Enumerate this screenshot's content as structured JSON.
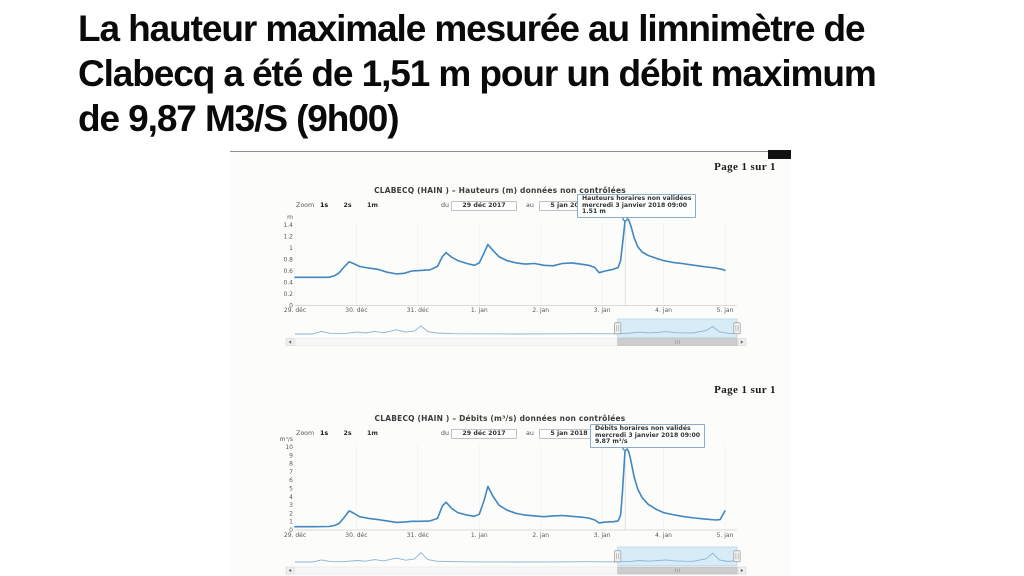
{
  "slide": {
    "title_lines": [
      "La hauteur maximale mesurée au limnimètre de",
      "Clabecq a été de 1,51 m pour un débit maximum",
      "de 9,87 M3/S (9h00)"
    ]
  },
  "colors": {
    "series_line": "#4187c0",
    "navigator_line": "#8ab4d6",
    "nav_selection_fill": "#d8ecf8",
    "nav_selection_border": "#aacde6",
    "tooltip_border": "#8aabca",
    "axis_text": "#5a5a5a",
    "scan_background": "#fcfcfa"
  },
  "chart_data": [
    {
      "type": "line",
      "page_label": "Page 1 sur 1",
      "title": "CLABECQ (HAIN ) – Hauteurs (m) données non contrôlées",
      "zoom_label": "Zoom",
      "zoom_options": [
        "1s",
        "2s",
        "1m"
      ],
      "active_zoom": "1s",
      "date_from_label": "du",
      "date_from": "29 déc 2017",
      "date_to_label": "au",
      "date_to": "5 jan 2018",
      "y_unit": "m",
      "y_ticks": [
        "0",
        "0.2",
        "0.4",
        "0.6",
        "0.8",
        "1",
        "1.2",
        "1.4"
      ],
      "ylim": [
        0,
        1.4
      ],
      "x_labels": [
        "29. déc",
        "30. déc",
        "31. déc",
        "1. jan",
        "2. jan",
        "3. jan",
        "4. jan",
        "5. jan"
      ],
      "tooltip_lines": [
        "Hauteurs horaires non validées",
        "mercredi 3 janvier 2018 09:00",
        "1.51 m"
      ],
      "peak": {
        "day": 5.375,
        "value": 1.51
      },
      "series_day_value": [
        [
          0,
          0.49
        ],
        [
          0.3,
          0.49
        ],
        [
          0.55,
          0.49
        ],
        [
          0.65,
          0.52
        ],
        [
          0.72,
          0.57
        ],
        [
          0.8,
          0.67
        ],
        [
          0.88,
          0.76
        ],
        [
          0.95,
          0.73
        ],
        [
          1.05,
          0.68
        ],
        [
          1.2,
          0.65
        ],
        [
          1.35,
          0.63
        ],
        [
          1.5,
          0.58
        ],
        [
          1.65,
          0.55
        ],
        [
          1.78,
          0.56
        ],
        [
          1.9,
          0.6
        ],
        [
          2.05,
          0.61
        ],
        [
          2.2,
          0.62
        ],
        [
          2.32,
          0.68
        ],
        [
          2.4,
          0.85
        ],
        [
          2.46,
          0.92
        ],
        [
          2.55,
          0.84
        ],
        [
          2.65,
          0.78
        ],
        [
          2.8,
          0.73
        ],
        [
          2.92,
          0.7
        ],
        [
          3.0,
          0.74
        ],
        [
          3.08,
          0.92
        ],
        [
          3.14,
          1.06
        ],
        [
          3.22,
          0.96
        ],
        [
          3.32,
          0.85
        ],
        [
          3.45,
          0.78
        ],
        [
          3.6,
          0.74
        ],
        [
          3.75,
          0.72
        ],
        [
          3.9,
          0.73
        ],
        [
          4.05,
          0.7
        ],
        [
          4.2,
          0.69
        ],
        [
          4.35,
          0.73
        ],
        [
          4.5,
          0.74
        ],
        [
          4.65,
          0.72
        ],
        [
          4.78,
          0.7
        ],
        [
          4.88,
          0.66
        ],
        [
          4.95,
          0.57
        ],
        [
          5.05,
          0.6
        ],
        [
          5.18,
          0.63
        ],
        [
          5.26,
          0.66
        ],
        [
          5.3,
          0.78
        ],
        [
          5.33,
          1.05
        ],
        [
          5.36,
          1.35
        ],
        [
          5.375,
          1.51
        ],
        [
          5.43,
          1.49
        ],
        [
          5.47,
          1.38
        ],
        [
          5.52,
          1.18
        ],
        [
          5.58,
          1.02
        ],
        [
          5.65,
          0.93
        ],
        [
          5.75,
          0.87
        ],
        [
          5.88,
          0.82
        ],
        [
          6.0,
          0.78
        ],
        [
          6.15,
          0.75
        ],
        [
          6.3,
          0.73
        ],
        [
          6.5,
          0.7
        ],
        [
          6.7,
          0.67
        ],
        [
          6.85,
          0.65
        ],
        [
          6.95,
          0.63
        ],
        [
          7,
          0.61
        ]
      ],
      "navigator": {
        "selection_range": [
          0.73,
          1
        ],
        "points": [
          [
            0,
            0.08
          ],
          [
            0.04,
            0.08
          ],
          [
            0.06,
            0.28
          ],
          [
            0.08,
            0.12
          ],
          [
            0.11,
            0.1
          ],
          [
            0.14,
            0.22
          ],
          [
            0.16,
            0.15
          ],
          [
            0.18,
            0.28
          ],
          [
            0.2,
            0.17
          ],
          [
            0.23,
            0.4
          ],
          [
            0.25,
            0.22
          ],
          [
            0.27,
            0.3
          ],
          [
            0.285,
            0.7
          ],
          [
            0.3,
            0.28
          ],
          [
            0.32,
            0.15
          ],
          [
            0.36,
            0.1
          ],
          [
            0.42,
            0.09
          ],
          [
            0.5,
            0.08
          ],
          [
            0.58,
            0.09
          ],
          [
            0.66,
            0.1
          ],
          [
            0.73,
            0.09
          ],
          [
            0.76,
            0.15
          ],
          [
            0.78,
            0.22
          ],
          [
            0.8,
            0.16
          ],
          [
            0.82,
            0.2
          ],
          [
            0.84,
            0.26
          ],
          [
            0.86,
            0.18
          ],
          [
            0.88,
            0.16
          ],
          [
            0.9,
            0.15
          ],
          [
            0.93,
            0.35
          ],
          [
            0.945,
            0.65
          ],
          [
            0.96,
            0.25
          ],
          [
            0.98,
            0.13
          ],
          [
            1,
            0.11
          ]
        ]
      }
    },
    {
      "type": "line",
      "page_label": "Page 1 sur 1",
      "title": "CLABECQ (HAIN ) – Débits (m³/s) données non contrôlées",
      "zoom_label": "Zoom",
      "zoom_options": [
        "1s",
        "2s",
        "1m"
      ],
      "active_zoom": "1s",
      "date_from_label": "du",
      "date_from": "29 déc 2017",
      "date_to_label": "au",
      "date_to": "5 jan 2018",
      "y_unit": "m³/s",
      "y_ticks": [
        "0",
        "1",
        "2",
        "3",
        "4",
        "5",
        "6",
        "7",
        "8",
        "9",
        "10"
      ],
      "ylim": [
        0,
        10
      ],
      "x_labels": [
        "29. déc",
        "30. déc",
        "31. déc",
        "1. jan",
        "2. jan",
        "3. jan",
        "4. jan",
        "5. jan"
      ],
      "tooltip_lines": [
        "Débits horaires non validés",
        "mercredi 3 janvier 2018 09:00",
        "9.87 m³/s"
      ],
      "peak": {
        "day": 5.375,
        "value": 9.87
      },
      "series_day_value": [
        [
          0,
          0.4
        ],
        [
          0.3,
          0.4
        ],
        [
          0.55,
          0.42
        ],
        [
          0.65,
          0.55
        ],
        [
          0.72,
          0.8
        ],
        [
          0.8,
          1.5
        ],
        [
          0.88,
          2.3
        ],
        [
          0.95,
          2.05
        ],
        [
          1.05,
          1.6
        ],
        [
          1.2,
          1.4
        ],
        [
          1.35,
          1.25
        ],
        [
          1.5,
          1.1
        ],
        [
          1.65,
          0.92
        ],
        [
          1.78,
          0.95
        ],
        [
          1.9,
          1.05
        ],
        [
          2.05,
          1.05
        ],
        [
          2.2,
          1.1
        ],
        [
          2.32,
          1.4
        ],
        [
          2.4,
          2.9
        ],
        [
          2.46,
          3.35
        ],
        [
          2.55,
          2.6
        ],
        [
          2.65,
          2.1
        ],
        [
          2.8,
          1.8
        ],
        [
          2.92,
          1.65
        ],
        [
          3.0,
          1.9
        ],
        [
          3.08,
          3.6
        ],
        [
          3.14,
          5.25
        ],
        [
          3.22,
          4.1
        ],
        [
          3.32,
          3.0
        ],
        [
          3.45,
          2.4
        ],
        [
          3.6,
          2.0
        ],
        [
          3.75,
          1.8
        ],
        [
          3.9,
          1.7
        ],
        [
          4.05,
          1.6
        ],
        [
          4.2,
          1.7
        ],
        [
          4.35,
          1.75
        ],
        [
          4.5,
          1.65
        ],
        [
          4.65,
          1.55
        ],
        [
          4.78,
          1.45
        ],
        [
          4.88,
          1.2
        ],
        [
          4.95,
          0.85
        ],
        [
          5.05,
          0.95
        ],
        [
          5.18,
          1.0
        ],
        [
          5.26,
          1.1
        ],
        [
          5.3,
          1.8
        ],
        [
          5.33,
          4.5
        ],
        [
          5.36,
          8.2
        ],
        [
          5.375,
          9.87
        ],
        [
          5.43,
          9.5
        ],
        [
          5.47,
          8.3
        ],
        [
          5.52,
          6.4
        ],
        [
          5.58,
          4.9
        ],
        [
          5.65,
          3.9
        ],
        [
          5.75,
          3.1
        ],
        [
          5.88,
          2.5
        ],
        [
          6.0,
          2.1
        ],
        [
          6.15,
          1.85
        ],
        [
          6.3,
          1.65
        ],
        [
          6.5,
          1.45
        ],
        [
          6.7,
          1.3
        ],
        [
          6.85,
          1.2
        ],
        [
          6.92,
          1.25
        ],
        [
          7,
          2.3
        ]
      ],
      "navigator": {
        "selection_range": [
          0.73,
          1
        ],
        "points": [
          [
            0,
            0.07
          ],
          [
            0.04,
            0.07
          ],
          [
            0.06,
            0.22
          ],
          [
            0.08,
            0.1
          ],
          [
            0.11,
            0.09
          ],
          [
            0.14,
            0.18
          ],
          [
            0.16,
            0.13
          ],
          [
            0.18,
            0.24
          ],
          [
            0.2,
            0.15
          ],
          [
            0.23,
            0.35
          ],
          [
            0.25,
            0.2
          ],
          [
            0.27,
            0.28
          ],
          [
            0.285,
            0.75
          ],
          [
            0.3,
            0.25
          ],
          [
            0.32,
            0.13
          ],
          [
            0.36,
            0.09
          ],
          [
            0.42,
            0.08
          ],
          [
            0.5,
            0.07
          ],
          [
            0.58,
            0.08
          ],
          [
            0.66,
            0.09
          ],
          [
            0.73,
            0.08
          ],
          [
            0.76,
            0.12
          ],
          [
            0.78,
            0.18
          ],
          [
            0.8,
            0.13
          ],
          [
            0.82,
            0.17
          ],
          [
            0.84,
            0.22
          ],
          [
            0.86,
            0.15
          ],
          [
            0.88,
            0.13
          ],
          [
            0.9,
            0.12
          ],
          [
            0.93,
            0.3
          ],
          [
            0.945,
            0.7
          ],
          [
            0.96,
            0.22
          ],
          [
            0.98,
            0.11
          ],
          [
            1,
            0.18
          ]
        ]
      }
    }
  ]
}
